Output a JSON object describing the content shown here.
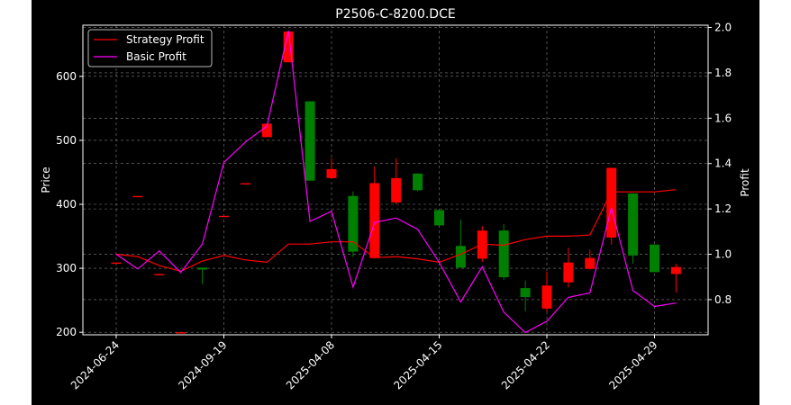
{
  "colors": {
    "figure_bg": "#000000",
    "outer_bg": "#ffffff",
    "axes_fg": "#ffffff",
    "grid": "#808080",
    "up_candle": "#008000",
    "down_candle": "#ff0000",
    "strategy_line": "#ff0000",
    "basic_line": "#ff00ff"
  },
  "chart_data": {
    "type": "candlestick",
    "title": "P2506-C-8200.DCE",
    "ylabel_left": "Price",
    "ylabel_right": "Profit",
    "xlabel": "",
    "grid": true,
    "legend_position": "upper-left",
    "ylim_left": [
      196,
      680
    ],
    "ylim_right": [
      0.645,
      2.01
    ],
    "yticks_left": [
      200,
      300,
      400,
      500,
      600
    ],
    "yticks_right": [
      0.8,
      1.0,
      1.2,
      1.4,
      1.6,
      1.8,
      2.0
    ],
    "x_tick_labels": [
      {
        "index": 0,
        "label": "2024-06-24"
      },
      {
        "index": 5,
        "label": "2024-09-19"
      },
      {
        "index": 10,
        "label": "2025-04-08"
      },
      {
        "index": 15,
        "label": "2025-04-15"
      },
      {
        "index": 20,
        "label": "2025-04-22"
      },
      {
        "index": 25,
        "label": "2025-04-29"
      }
    ],
    "candles": [
      {
        "o": 309,
        "h": 309,
        "l": 309,
        "c": 309
      },
      {
        "o": 413,
        "h": 413,
        "l": 413,
        "c": 413
      },
      {
        "o": 291,
        "h": 291,
        "l": 291,
        "c": 291
      },
      {
        "o": 200,
        "h": 200,
        "l": 200,
        "c": 200
      },
      {
        "o": 298,
        "h": 301,
        "l": 275,
        "c": 301
      },
      {
        "o": 382,
        "h": 382,
        "l": 382,
        "c": 382
      },
      {
        "o": 433,
        "h": 433,
        "l": 433,
        "c": 433
      },
      {
        "o": 526,
        "h": 526,
        "l": 505,
        "c": 505
      },
      {
        "o": 670,
        "h": 670,
        "l": 622,
        "c": 622
      },
      {
        "o": 437,
        "h": 561,
        "l": 437,
        "c": 561
      },
      {
        "o": 455,
        "h": 472,
        "l": 440,
        "c": 441
      },
      {
        "o": 326,
        "h": 420,
        "l": 318,
        "c": 413
      },
      {
        "o": 433,
        "h": 459,
        "l": 315,
        "c": 316
      },
      {
        "o": 441,
        "h": 472,
        "l": 400,
        "c": 403
      },
      {
        "o": 422,
        "h": 449,
        "l": 420,
        "c": 448
      },
      {
        "o": 367,
        "h": 392,
        "l": 367,
        "c": 391
      },
      {
        "o": 301,
        "h": 376,
        "l": 301,
        "c": 335
      },
      {
        "o": 359,
        "h": 366,
        "l": 310,
        "c": 315
      },
      {
        "o": 286,
        "h": 369,
        "l": 282,
        "c": 359
      },
      {
        "o": 255,
        "h": 281,
        "l": 233,
        "c": 269
      },
      {
        "o": 273,
        "h": 295,
        "l": 232,
        "c": 237
      },
      {
        "o": 309,
        "h": 332,
        "l": 270,
        "c": 278
      },
      {
        "o": 316,
        "h": 329,
        "l": 298,
        "c": 299
      },
      {
        "o": 457,
        "h": 457,
        "l": 337,
        "c": 348
      },
      {
        "o": 320,
        "h": 417,
        "l": 307,
        "c": 417
      },
      {
        "o": 294,
        "h": 337,
        "l": 294,
        "c": 337
      },
      {
        "o": 302,
        "h": 307,
        "l": 262,
        "c": 291
      }
    ],
    "series": [
      {
        "name": "Strategy Profit",
        "axis": "right",
        "values": [
          1.0,
          0.99,
          0.95,
          0.925,
          0.97,
          0.995,
          0.975,
          0.965,
          1.045,
          1.045,
          1.055,
          1.055,
          0.985,
          0.99,
          0.98,
          0.965,
          1.0,
          1.045,
          1.04,
          1.065,
          1.08,
          1.08,
          1.085,
          1.275,
          1.275,
          1.275,
          1.285
        ]
      },
      {
        "name": "Basic Profit",
        "axis": "right",
        "values": [
          1.0,
          0.935,
          1.015,
          0.92,
          1.045,
          1.405,
          1.495,
          1.565,
          1.985,
          1.145,
          1.19,
          0.855,
          1.14,
          1.16,
          1.11,
          0.965,
          0.79,
          0.945,
          0.745,
          0.655,
          0.705,
          0.81,
          0.83,
          1.205,
          0.84,
          0.77,
          0.785
        ]
      }
    ]
  }
}
